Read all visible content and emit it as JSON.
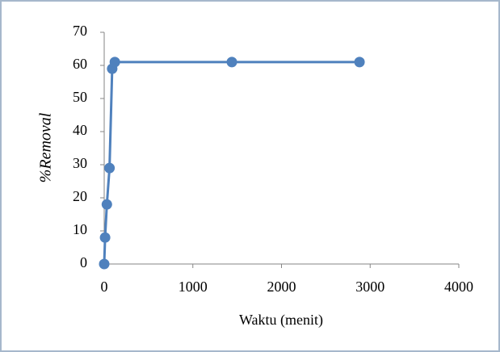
{
  "chart_data": {
    "type": "line",
    "x_label": "Waktu (menit)",
    "y_label": "%Removal",
    "x": [
      0,
      10,
      30,
      60,
      90,
      120,
      1440,
      2880
    ],
    "series": [
      {
        "color": "#4f81bd",
        "values": [
          0,
          8,
          18,
          29,
          59,
          61,
          61,
          61
        ]
      }
    ],
    "xlim": [
      0,
      4000
    ],
    "xticks": [
      0,
      1000,
      2000,
      3000,
      4000
    ],
    "ylim": [
      0,
      70
    ],
    "yticks": [
      0,
      10,
      20,
      30,
      40,
      50,
      60,
      70
    ],
    "grid": false
  }
}
